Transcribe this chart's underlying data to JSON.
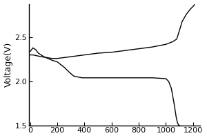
{
  "title": "",
  "xlabel": "",
  "ylabel": "Voltage(V)",
  "xlim": [
    -10,
    1250
  ],
  "ylim": [
    1.5,
    2.88
  ],
  "yticks": [
    1.5,
    2.0,
    2.5
  ],
  "xticks": [
    0,
    200,
    400,
    600,
    800,
    1000,
    1200
  ],
  "line_color": "#000000",
  "background_color": "#ffffff",
  "ylabel_fontsize": 9,
  "tick_fontsize": 8,
  "discharge_x": [
    0,
    20,
    40,
    60,
    80,
    100,
    130,
    160,
    200,
    250,
    290,
    320,
    350,
    380,
    420,
    460,
    500,
    600,
    700,
    800,
    900,
    1000,
    1020,
    1040,
    1060,
    1075,
    1085,
    1095,
    1100
  ],
  "discharge_v": [
    2.34,
    2.38,
    2.36,
    2.32,
    2.3,
    2.28,
    2.26,
    2.24,
    2.22,
    2.16,
    2.1,
    2.06,
    2.05,
    2.04,
    2.04,
    2.04,
    2.04,
    2.04,
    2.04,
    2.04,
    2.04,
    2.03,
    2.0,
    1.92,
    1.75,
    1.6,
    1.53,
    1.5,
    1.5
  ],
  "charge_x": [
    0,
    20,
    50,
    80,
    120,
    160,
    200,
    250,
    300,
    400,
    500,
    600,
    700,
    800,
    900,
    1000,
    1050,
    1080,
    1100,
    1120,
    1150,
    1180,
    1200,
    1210
  ],
  "charge_v": [
    2.3,
    2.3,
    2.29,
    2.28,
    2.27,
    2.26,
    2.26,
    2.27,
    2.28,
    2.3,
    2.32,
    2.33,
    2.35,
    2.37,
    2.39,
    2.42,
    2.45,
    2.48,
    2.58,
    2.68,
    2.76,
    2.82,
    2.85,
    2.87
  ]
}
